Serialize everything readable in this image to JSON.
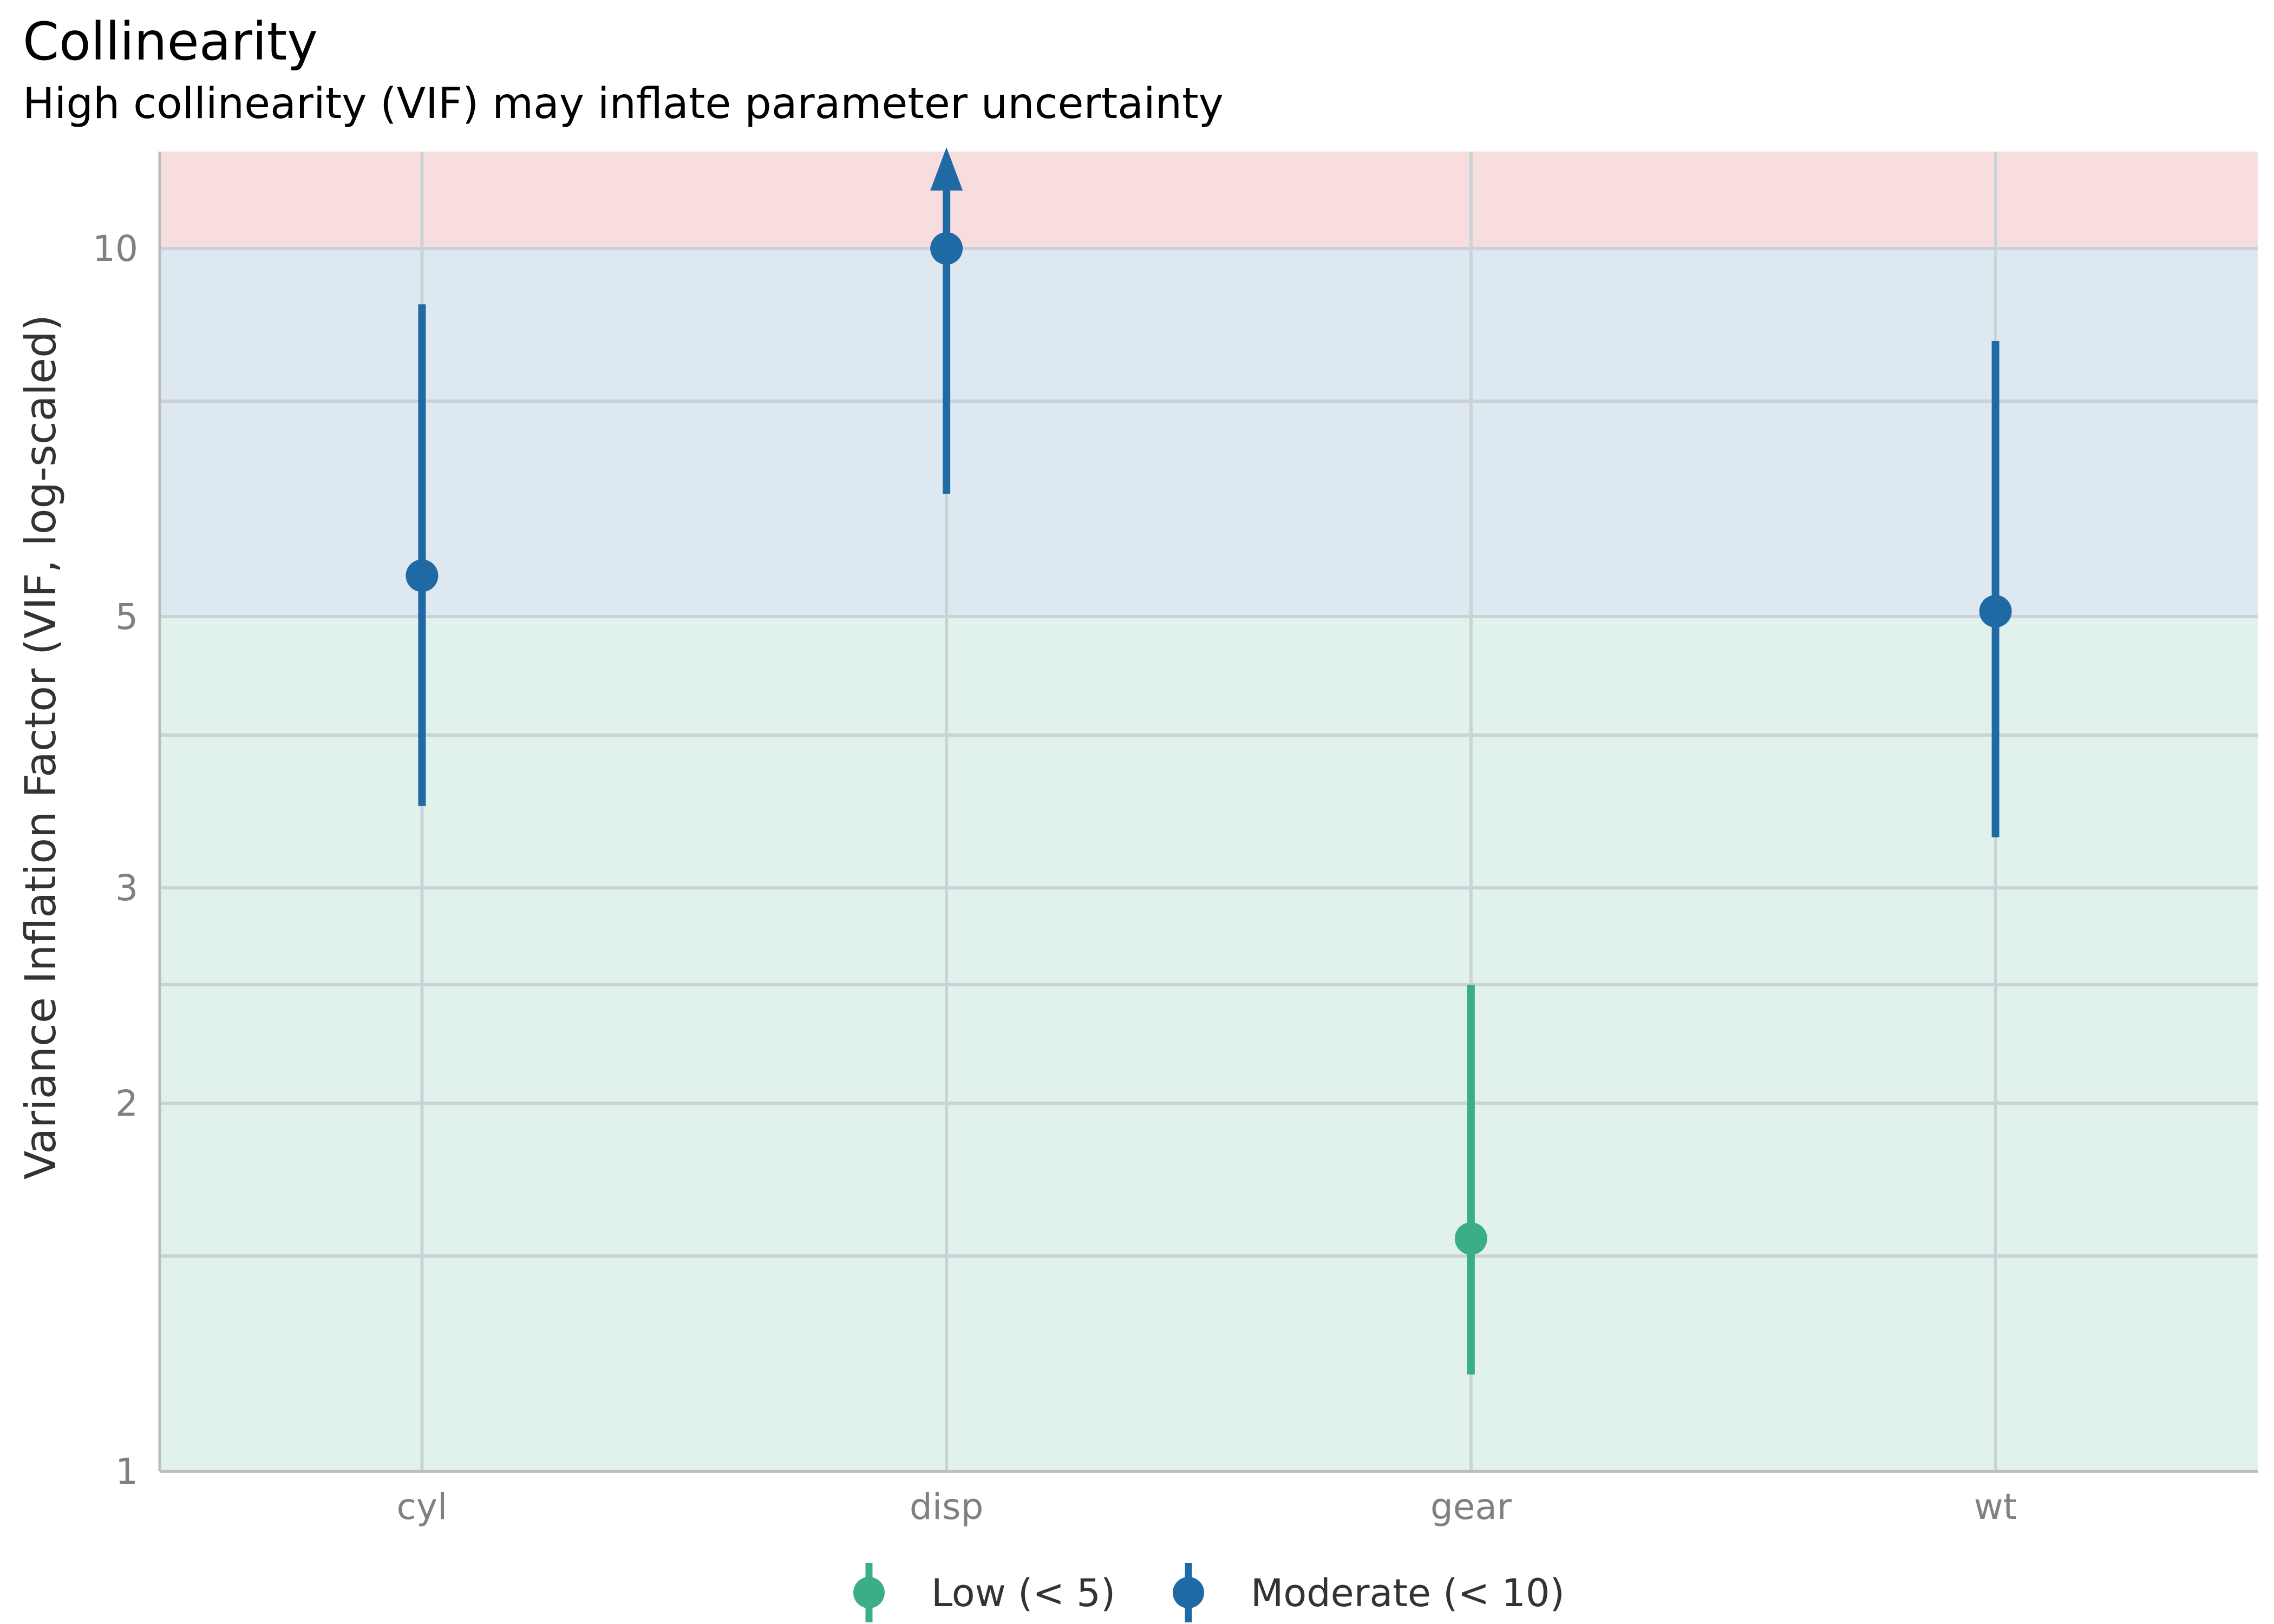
{
  "chart_data": {
    "type": "scatter",
    "title": "Collinearity",
    "subtitle": "High collinearity (VIF) may inflate parameter uncertainty",
    "xlabel": "",
    "ylabel": "Variance Inflation Factor (VIF, log-scaled)",
    "y_scale": "log",
    "ylim": [
      1,
      12
    ],
    "y_ticks": [
      1,
      2,
      3,
      5,
      10
    ],
    "y_minor_ticks": [
      1.5,
      2.5,
      4,
      7.5
    ],
    "categories": [
      "cyl",
      "disp",
      "gear",
      "wt"
    ],
    "points": [
      {
        "term": "cyl",
        "vif": 5.4,
        "ci_low": 3.5,
        "ci_high": 9.0,
        "group": "Moderate (< 10)",
        "truncated_high": false
      },
      {
        "term": "disp",
        "vif": 10.0,
        "ci_low": 6.3,
        "ci_high": 12.0,
        "group": "Moderate (< 10)",
        "truncated_high": true
      },
      {
        "term": "gear",
        "vif": 1.55,
        "ci_low": 1.2,
        "ci_high": 2.5,
        "group": "Low (< 5)",
        "truncated_high": false
      },
      {
        "term": "wt",
        "vif": 5.05,
        "ci_low": 3.3,
        "ci_high": 8.4,
        "group": "Moderate (< 10)",
        "truncated_high": false
      }
    ],
    "bands": [
      {
        "from": 1,
        "to": 5,
        "color": "#e1f1ec"
      },
      {
        "from": 5,
        "to": 10,
        "color": "#dde8f0"
      },
      {
        "from": 10,
        "to": 12,
        "color": "#f8dddf"
      }
    ],
    "legend": {
      "position": "bottom",
      "entries": [
        {
          "label": "Low (< 5)",
          "color": "#3aaf85"
        },
        {
          "label": "Moderate (< 10)",
          "color": "#1f6aa5"
        }
      ]
    },
    "grid": true
  }
}
